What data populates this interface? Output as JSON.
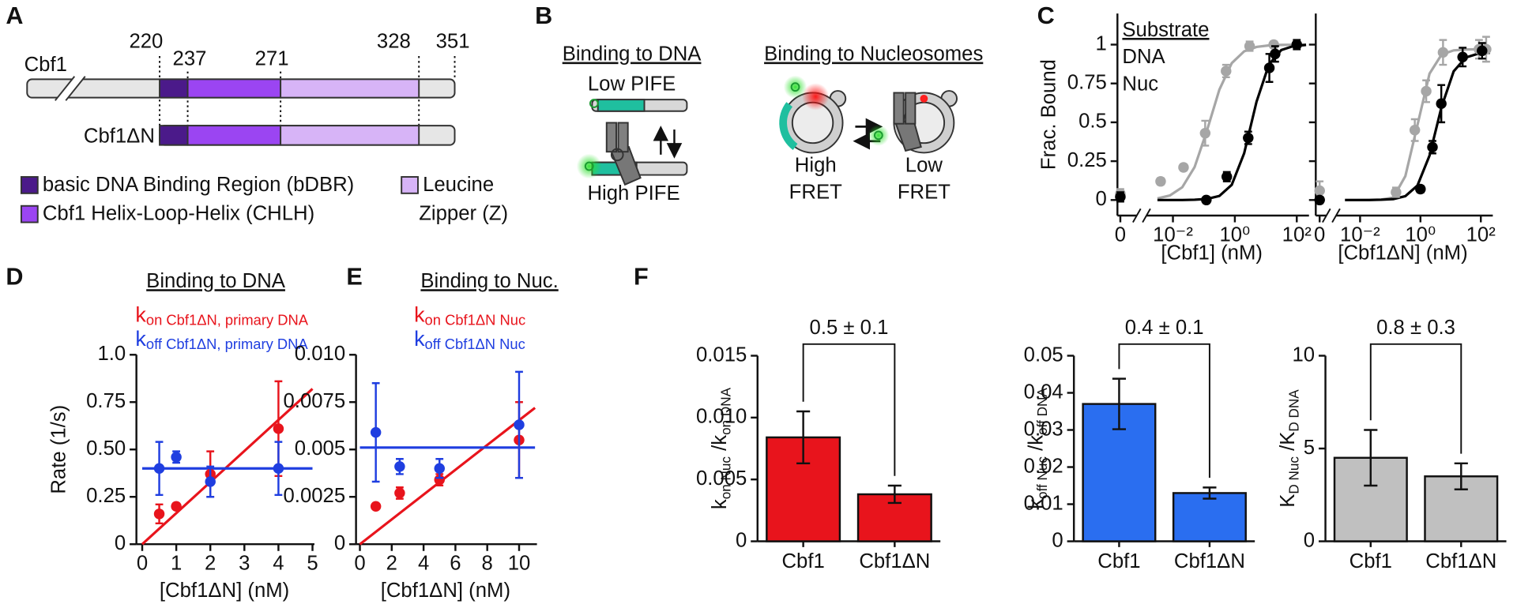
{
  "panel_labels": [
    "A",
    "B",
    "C",
    "D",
    "E",
    "F"
  ],
  "panel_a": {
    "proteins": [
      "Cbf1",
      "Cbf1ΔN"
    ],
    "residues": [
      220,
      237,
      271,
      328,
      351
    ],
    "legend": {
      "bdbr": "basic DNA Binding Region (bDBR)",
      "chlh": "Cbf1 Helix-Loop-Helix (CHLH)",
      "zipper": [
        "Leucine",
        "Zipper (Z)"
      ]
    }
  },
  "panel_b": {
    "dna": {
      "title": "Binding to DNA",
      "low": "Low PIFE",
      "high": "High PIFE"
    },
    "nuc": {
      "title": "Binding to Nucleosomes",
      "high": [
        "High",
        "FRET"
      ],
      "low": [
        "Low",
        "FRET"
      ]
    }
  },
  "chart_data": [
    {
      "type": "scatter",
      "ylabel": "Frac. Bound",
      "xlabel": "[Cbf1] (nM)",
      "xscale": "log",
      "legend_title": "Substrate",
      "xlim": [
        0.002,
        200
      ],
      "xticks": [
        0,
        {
          "value": 0.01,
          "label": "10⁻²"
        },
        {
          "value": 1,
          "label": "10⁰"
        },
        {
          "value": 100,
          "label": "10²"
        }
      ],
      "ylim": [
        -0.1,
        1.2
      ],
      "yticks": [
        0,
        0.25,
        0.5,
        0.75,
        1
      ],
      "series": [
        {
          "name": "DNA",
          "color": "#a6a6a6",
          "x": [
            0,
            0.004,
            0.022,
            0.11,
            0.52,
            3,
            18
          ],
          "values": [
            0.04,
            0.12,
            0.21,
            0.43,
            0.83,
            0.99,
            1
          ],
          "errors": [
            0.03,
            0.02,
            0.02,
            0.08,
            0.04,
            0.03,
            0.02
          ]
        },
        {
          "name": "Nuc",
          "color": "#000000",
          "x": [
            0,
            0.12,
            0.55,
            2.7,
            13,
            20,
            100
          ],
          "values": [
            0.02,
            0,
            0.15,
            0.4,
            0.85,
            0.94,
            1
          ],
          "errors": [
            0.03,
            0.01,
            0.03,
            0.04,
            0.09,
            0.05,
            0.03
          ]
        }
      ],
      "fits": [
        {
          "color": "#a6a6a6",
          "x": [
            0.00316,
            0.00794,
            0.02,
            0.0501,
            0.126,
            0.316,
            0.794,
            2,
            5.01,
            12.6,
            31.6,
            79.4,
            200
          ],
          "values": [
            0.01,
            0.029,
            0.082,
            0.212,
            0.448,
            0.71,
            0.881,
            0.957,
            0.985,
            0.995,
            0.998,
            0.999,
            1
          ]
        },
        {
          "color": "#000000",
          "x": [
            0.00316,
            0.00794,
            0.02,
            0.0501,
            0.126,
            0.316,
            0.794,
            2,
            5.01,
            12.6,
            31.6,
            79.4,
            200
          ],
          "values": [
            0,
            0,
            0,
            0.002,
            0.007,
            0.026,
            0.098,
            0.301,
            0.632,
            0.872,
            0.965,
            0.991,
            0.998
          ]
        }
      ]
    },
    {
      "type": "scatter",
      "xlabel": "[Cbf1ΔN] (nM)",
      "xscale": "log",
      "show_ytick_labels": false,
      "xlim": [
        0.002,
        200
      ],
      "xticks": [
        0,
        {
          "value": 0.01,
          "label": "10⁻²"
        },
        {
          "value": 1,
          "label": "10⁰"
        },
        {
          "value": 100,
          "label": "10²"
        }
      ],
      "ylim": [
        -0.1,
        1.2
      ],
      "yticks": [
        0,
        0.25,
        0.5,
        0.75,
        1
      ],
      "series": [
        {
          "color": "#a6a6a6",
          "x": [
            0,
            0.155,
            0.65,
            1.55,
            5.6,
            87,
            150
          ],
          "values": [
            0.06,
            0.05,
            0.45,
            0.7,
            0.95,
            0.97,
            0.97
          ],
          "errors": [
            0.06,
            0.03,
            0.07,
            0.07,
            0.08,
            0.06,
            0.08
          ]
        },
        {
          "color": "#000000",
          "x": [
            0,
            1,
            2.5,
            4.9,
            25,
            110
          ],
          "values": [
            0,
            0.07,
            0.34,
            0.62,
            0.92,
            0.96
          ],
          "errors": [
            0.02,
            0.02,
            0.04,
            0.12,
            0.06,
            0.05
          ]
        }
      ],
      "fits": [
        {
          "color": "#a6a6a6",
          "x": [
            0.00316,
            0.00794,
            0.02,
            0.0501,
            0.126,
            0.316,
            0.794,
            2,
            5.01,
            12.6,
            31.6,
            79.4,
            200
          ],
          "values": [
            0,
            0,
            0.001,
            0.003,
            0.016,
            0.154,
            0.482,
            0.813,
            0.936,
            0.963,
            0.969,
            0.97,
            0.97
          ]
        },
        {
          "color": "#000000",
          "x": [
            0.00316,
            0.00794,
            0.02,
            0.0501,
            0.126,
            0.316,
            0.794,
            2,
            5.01,
            12.6,
            31.6,
            79.4,
            200
          ],
          "values": [
            0,
            0,
            0,
            0.002,
            0.006,
            0.025,
            0.093,
            0.286,
            0.6,
            0.828,
            0.917,
            0.941,
            0.948
          ]
        }
      ]
    },
    {
      "type": "scatter",
      "title": "Binding to DNA",
      "xlabel": "[Cbf1ΔN] (nM)",
      "ylabel": "Rate (1/s)",
      "xlim": [
        0,
        5
      ],
      "xticks": [
        0,
        1,
        2,
        3,
        4,
        5
      ],
      "ylim": [
        0,
        1
      ],
      "yticks": [
        0,
        0.25,
        {
          "value": 0.5,
          "label": "0.50"
        },
        0.75,
        {
          "value": 1,
          "label": "1.0"
        }
      ],
      "series": [
        {
          "name": "k",
          "name_sub": "on Cbf1ΔN, primary DNA",
          "color": "#e8141c",
          "x": [
            0.5,
            1,
            2,
            4
          ],
          "values": [
            0.16,
            0.2,
            0.37,
            0.61
          ],
          "errors": [
            0.05,
            0.015,
            0.12,
            0.25
          ]
        },
        {
          "name": "k",
          "name_sub": "off Cbf1ΔN, primary DNA",
          "color": "#1f3ee0",
          "x": [
            0.5,
            1,
            2,
            4
          ],
          "values": [
            0.4,
            0.46,
            0.33,
            0.4
          ],
          "errors": [
            0.14,
            0.03,
            0.08,
            0.14
          ]
        }
      ],
      "fits": [
        {
          "color": "#e8141c",
          "x": [
            0,
            5
          ],
          "values": [
            0,
            0.82
          ]
        },
        {
          "color": "#1f3ee0",
          "x": [
            0,
            5
          ],
          "values": [
            0.4,
            0.4
          ]
        }
      ]
    },
    {
      "type": "scatter",
      "title": "Binding to Nuc.",
      "xlabel": "[Cbf1ΔN] (nM)",
      "xlim": [
        0,
        11
      ],
      "xticks": [
        0,
        2,
        4,
        6,
        8,
        10
      ],
      "ylim": [
        0,
        0.01
      ],
      "yticks": [
        0,
        0.0025,
        0.005,
        0.0075,
        {
          "value": 0.01,
          "label": "0.010"
        }
      ],
      "series": [
        {
          "name": "k",
          "name_sub": "on Cbf1ΔN Nuc",
          "color": "#e8141c",
          "x": [
            1,
            2.5,
            5,
            10
          ],
          "values": [
            0.002,
            0.0027,
            0.0034,
            0.0055
          ],
          "errors": [
            0.0001,
            0.0003,
            0.0003,
            0.002
          ]
        },
        {
          "name": "k",
          "name_sub": "off Cbf1ΔN Nuc",
          "color": "#1f3ee0",
          "x": [
            1,
            2.5,
            5,
            10
          ],
          "values": [
            0.0059,
            0.0041,
            0.004,
            0.0063
          ],
          "errors": [
            0.0026,
            0.0004,
            0.0005,
            0.0028
          ]
        }
      ],
      "fits": [
        {
          "color": "#e8141c",
          "x": [
            0,
            11
          ],
          "values": [
            0,
            0.0072
          ]
        },
        {
          "color": "#1f3ee0",
          "x": [
            0,
            11
          ],
          "values": [
            0.0051,
            0.0051
          ]
        }
      ]
    },
    {
      "type": "bar",
      "ylabel_parts": [
        {
          "text": "k"
        },
        {
          "text": "on Nuc",
          "sub": true
        },
        {
          "text": " /k"
        },
        {
          "text": "on DNA",
          "sub": true
        }
      ],
      "categories": [
        "Cbf1",
        "Cbf1ΔN"
      ],
      "values": [
        0.0084,
        0.0038
      ],
      "errors": [
        0.0021,
        0.0007
      ],
      "color": "#e8141c",
      "ylim": [
        0,
        0.015
      ],
      "yticks": [
        0,
        0.005,
        {
          "value": 0.01,
          "label": "0.010"
        },
        0.015
      ],
      "annotation": "0.5 ± 0.1"
    },
    {
      "type": "bar",
      "ylabel_parts": [
        {
          "text": "k"
        },
        {
          "text": "off Nuc",
          "sub": true
        },
        {
          "text": " /k"
        },
        {
          "text": "off DNA",
          "sub": true
        }
      ],
      "categories": [
        "Cbf1",
        "Cbf1ΔN"
      ],
      "values": [
        0.037,
        0.013
      ],
      "errors": [
        0.0068,
        0.0015
      ],
      "color": "#2a6ef0",
      "ylim": [
        0,
        0.05
      ],
      "yticks": [
        0,
        0.01,
        0.02,
        0.03,
        0.04,
        0.05
      ],
      "annotation": "0.4 ± 0.1"
    },
    {
      "type": "bar",
      "ylabel_parts": [
        {
          "text": "K"
        },
        {
          "text": "D Nuc",
          "sub": true
        },
        {
          "text": " /K"
        },
        {
          "text": "D DNA",
          "sub": true
        }
      ],
      "categories": [
        "Cbf1",
        "Cbf1ΔN"
      ],
      "values": [
        4.5,
        3.5
      ],
      "errors": [
        1.5,
        0.7
      ],
      "color": "#c0c0c0",
      "ylim": [
        0,
        10
      ],
      "yticks": [
        0,
        5,
        10
      ],
      "annotation": "0.8 ± 0.3"
    }
  ]
}
